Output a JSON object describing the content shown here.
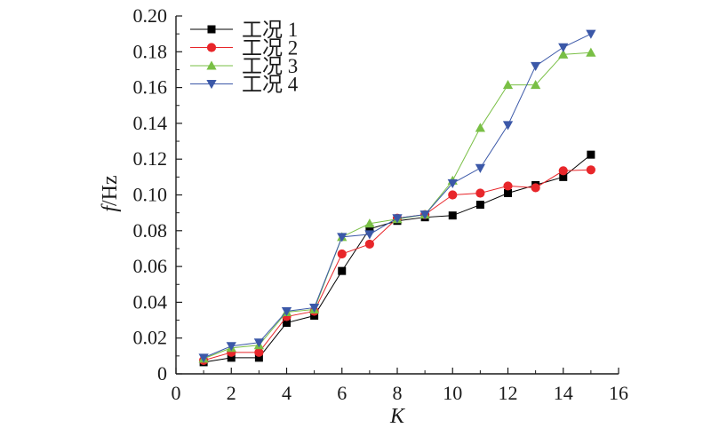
{
  "chart_data": {
    "type": "line",
    "xlabel": "K",
    "ylabel": "f/Hz",
    "ylabel_italic_part": "f",
    "ylabel_unit_part": "/Hz",
    "xlim": [
      0,
      16
    ],
    "ylim": [
      0,
      0.2
    ],
    "xticks": [
      0,
      2,
      4,
      6,
      8,
      10,
      12,
      14,
      16
    ],
    "yticks": [
      0,
      0.02,
      0.04,
      0.06,
      0.08,
      0.1,
      0.12,
      0.14,
      0.16,
      0.18,
      0.2
    ],
    "xtick_labels": [
      "0",
      "2",
      "4",
      "6",
      "8",
      "10",
      "12",
      "14",
      "16"
    ],
    "ytick_labels": [
      "0",
      "0.02",
      "0.04",
      "0.06",
      "0.08",
      "0.10",
      "0.12",
      "0.14",
      "0.16",
      "0.18",
      "0.20"
    ],
    "grid": false,
    "legend_position": "top-left",
    "x": [
      1,
      2,
      3,
      4,
      5,
      6,
      7,
      8,
      9,
      10,
      11,
      12,
      13,
      14,
      15
    ],
    "series": [
      {
        "name": "工况 1",
        "marker": "square",
        "color": "#000000",
        "values": [
          0.0065,
          0.009,
          0.009,
          0.0285,
          0.0325,
          0.0575,
          0.081,
          0.0855,
          0.0875,
          0.0885,
          0.0945,
          0.101,
          0.1055,
          0.11,
          0.1225
        ]
      },
      {
        "name": "工况 2",
        "marker": "circle",
        "color": "#e8262a",
        "values": [
          0.0075,
          0.012,
          0.012,
          0.032,
          0.035,
          0.067,
          0.0725,
          0.087,
          0.089,
          0.1,
          0.101,
          0.105,
          0.104,
          0.1135,
          0.114
        ]
      },
      {
        "name": "工况 3",
        "marker": "triangle-up",
        "color": "#79bf45",
        "values": [
          0.0085,
          0.0145,
          0.016,
          0.0345,
          0.036,
          0.0765,
          0.084,
          0.0865,
          0.089,
          0.108,
          0.1375,
          0.1615,
          0.1615,
          0.1785,
          0.1795
        ]
      },
      {
        "name": "工况 4",
        "marker": "triangle-down",
        "color": "#3b58a8",
        "values": [
          0.009,
          0.0155,
          0.0175,
          0.035,
          0.037,
          0.0765,
          0.078,
          0.087,
          0.089,
          0.1065,
          0.115,
          0.139,
          0.172,
          0.1825,
          0.19
        ]
      }
    ]
  }
}
